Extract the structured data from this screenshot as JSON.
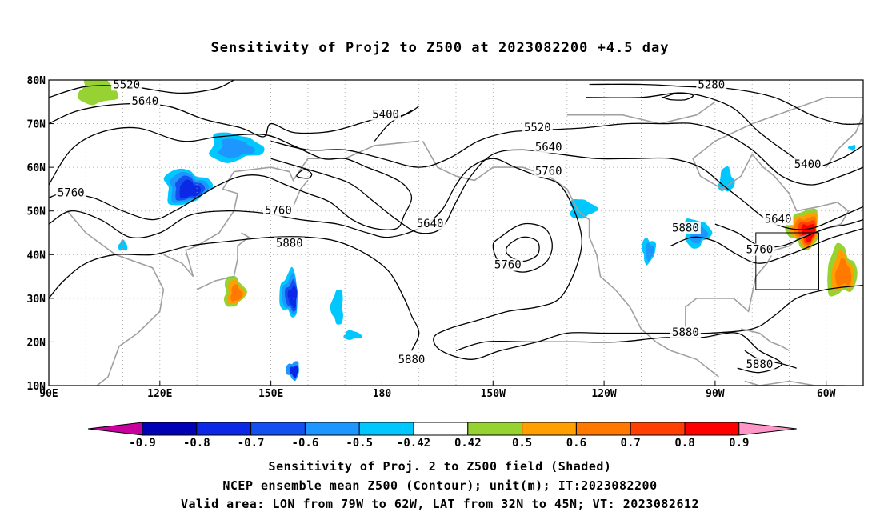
{
  "title": "Sensitivity of Proj2 to Z500 at 2023082200 +4.5 day",
  "lat_labels": [
    "80N",
    "70N",
    "60N",
    "50N",
    "40N",
    "30N",
    "20N",
    "10N"
  ],
  "lon_labels": [
    "90E",
    "120E",
    "150E",
    "180",
    "150W",
    "120W",
    "90W",
    "60W"
  ],
  "contour_labels": [
    {
      "text": "5520",
      "lon": 111,
      "lat": 78.3
    },
    {
      "text": "5640",
      "lon": 116,
      "lat": 74.5
    },
    {
      "text": "5400",
      "lon": 181,
      "lat": 71.5
    },
    {
      "text": "5280",
      "lon": 269,
      "lat": 78.3
    },
    {
      "text": "5520",
      "lon": 222,
      "lat": 68.5
    },
    {
      "text": "5640",
      "lon": 225,
      "lat": 64
    },
    {
      "text": "5760",
      "lon": 225,
      "lat": 58.5
    },
    {
      "text": "5760",
      "lon": 96,
      "lat": 53.5
    },
    {
      "text": "5760",
      "lon": 152,
      "lat": 49.5
    },
    {
      "text": "5880",
      "lon": 155,
      "lat": 42
    },
    {
      "text": "5640",
      "lon": 193,
      "lat": 46.5
    },
    {
      "text": "5760",
      "lon": 214,
      "lat": 37
    },
    {
      "text": "5880",
      "lon": 262,
      "lat": 45.5
    },
    {
      "text": "5400",
      "lon": 295,
      "lat": 60
    },
    {
      "text": "5640",
      "lon": 287,
      "lat": 47.5
    },
    {
      "text": "5760",
      "lon": 282,
      "lat": 40.5
    },
    {
      "text": "5880",
      "lon": 262,
      "lat": 21.5
    },
    {
      "text": "5880",
      "lon": 188,
      "lat": 15.3
    },
    {
      "text": "5880",
      "lon": 282,
      "lat": 14.2
    }
  ],
  "colorbar": {
    "labels": [
      "-0.9",
      "-0.8",
      "-0.7",
      "-0.6",
      "-0.5",
      "-0.42",
      "0.42",
      "0.5",
      "0.6",
      "0.7",
      "0.8",
      "0.9"
    ],
    "colors": [
      "#0000b4",
      "#0a28e6",
      "#1450f0",
      "#1e96ff",
      "#00c8ff",
      "#ffffff",
      "#96d232",
      "#ffa000",
      "#ff7800",
      "#ff4000",
      "#ff0000"
    ],
    "low_color": "#c800a0",
    "high_color": "#ff96c8"
  },
  "valid_box": {
    "lon_min": 281,
    "lon_max": 298,
    "lat_min": 32,
    "lat_max": 45
  },
  "caption_lines": [
    "Sensitivity of Proj. 2 to Z500 field (Shaded)",
    "NCEP ensemble mean Z500 (Contour); unit(m); IT:2023082200",
    "Valid area: LON from 79W to 62W, LAT from 32N to 45N; VT: 2023082612"
  ],
  "colors": {
    "coast": "#a0a0a0",
    "contour": "#000000",
    "grid": "#a0a0a0"
  }
}
